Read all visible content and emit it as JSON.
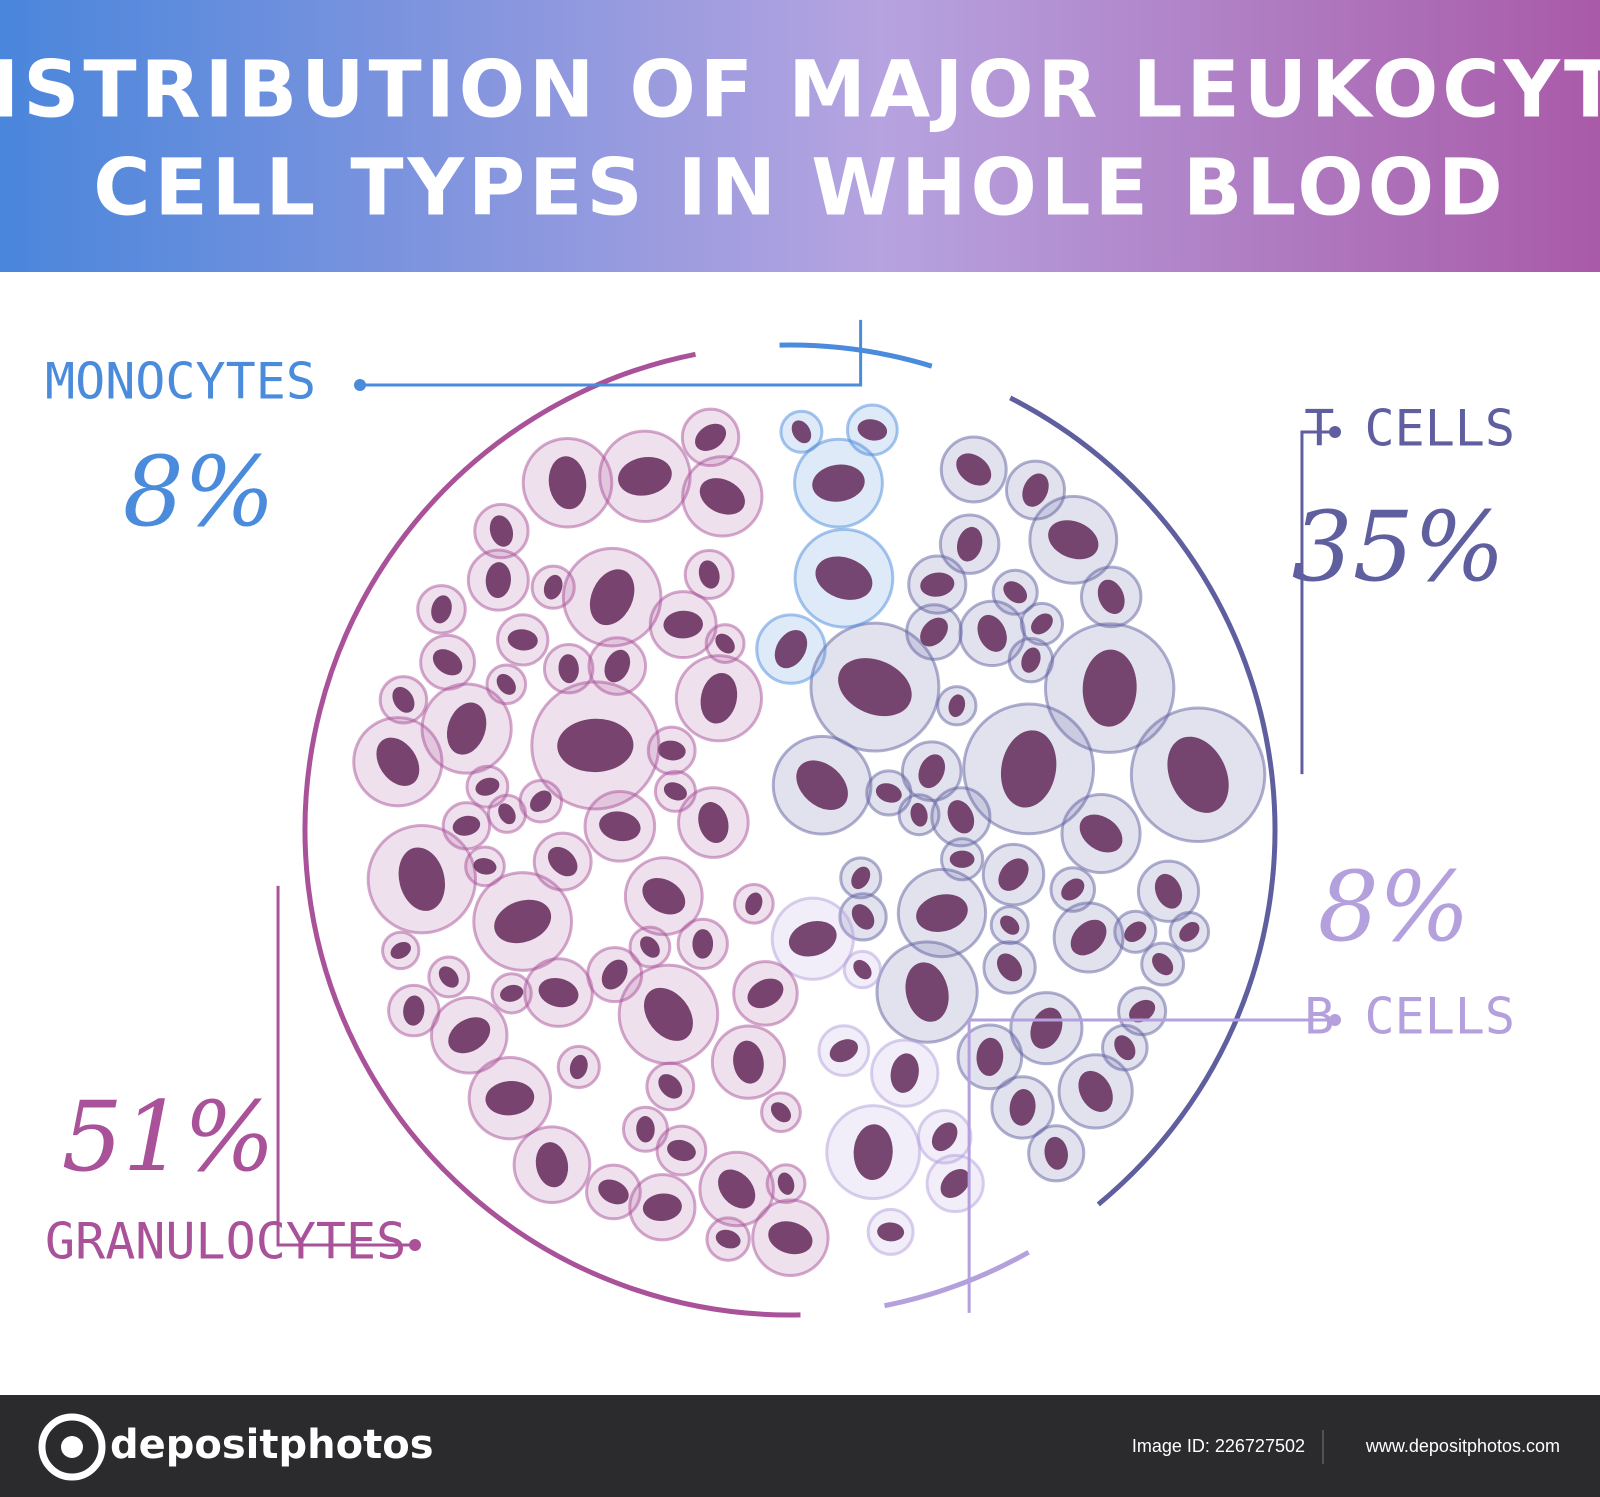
{
  "chart_data": {
    "type": "pie",
    "title": [
      "DISTRIBUTION OF MAJOR LEUKOCYTE",
      "CELL TYPES IN WHOLE BLOOD"
    ],
    "categories": [
      "T CELLS",
      "B CELLS",
      "GRANULOCYTES",
      "MONOCYTES"
    ],
    "values": [
      35,
      8,
      51,
      8
    ],
    "value_labels": [
      "35%",
      "8%",
      "51%",
      "8%"
    ],
    "colors": [
      "#5f5fa0",
      "#b3a0dc",
      "#a9529a",
      "#4b8bdb"
    ]
  },
  "footer": {
    "brand": "depositphotos",
    "image_id": "Image ID: 226727502",
    "url": "www.depositphotos.com"
  }
}
